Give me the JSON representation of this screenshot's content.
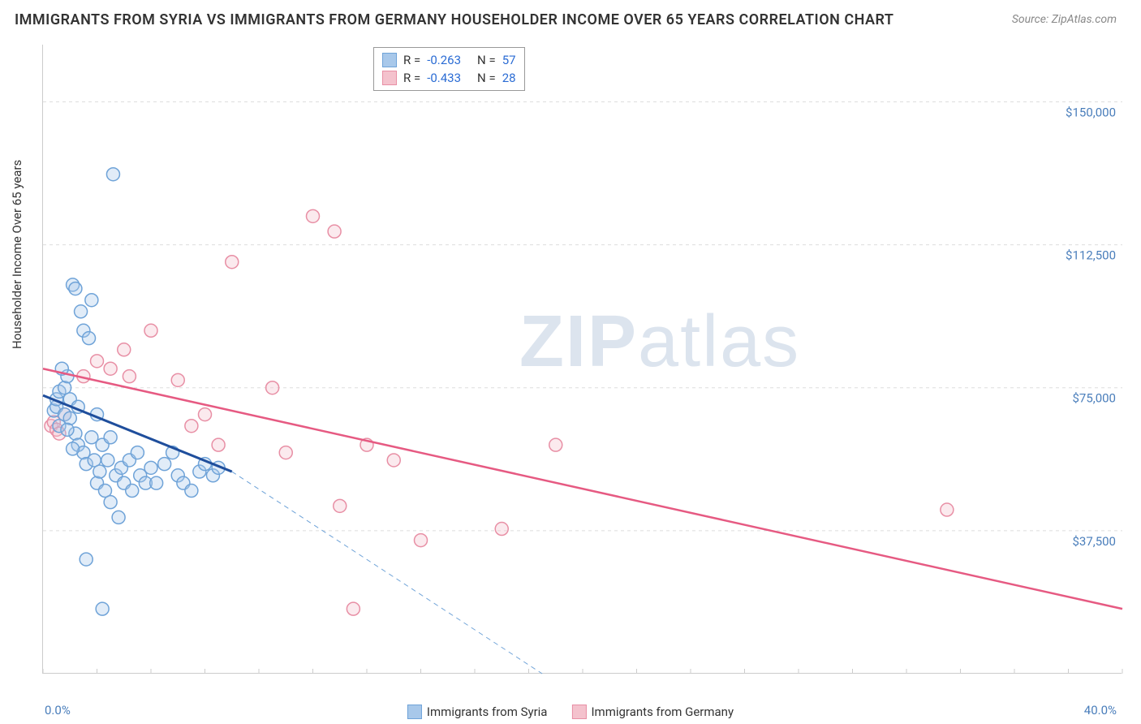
{
  "title": "IMMIGRANTS FROM SYRIA VS IMMIGRANTS FROM GERMANY HOUSEHOLDER INCOME OVER 65 YEARS CORRELATION CHART",
  "source": "Source: ZipAtlas.com",
  "ylabel": "Householder Income Over 65 years",
  "watermark_bold": "ZIP",
  "watermark_light": "atlas",
  "chart": {
    "type": "scatter",
    "xlim": [
      0.0,
      40.0
    ],
    "ylim": [
      0,
      165000
    ],
    "x_unit": "%",
    "y_unit": "$",
    "x_ticks": [
      {
        "v": 0.0,
        "label": "0.0%"
      },
      {
        "v": 40.0,
        "label": "40.0%"
      }
    ],
    "y_gridlines": [
      {
        "v": 37500,
        "label": "$37,500"
      },
      {
        "v": 75000,
        "label": "$75,000"
      },
      {
        "v": 112500,
        "label": "$112,500"
      },
      {
        "v": 150000,
        "label": "$150,000"
      }
    ],
    "marker_radius": 8,
    "marker_fill_opacity": 0.35,
    "marker_stroke_width": 1.5,
    "background_color": "#ffffff",
    "grid_color": "#dddddd",
    "axis_color": "#cccccc",
    "tick_label_color": "#4a7ebb"
  },
  "series": {
    "syria": {
      "label": "Immigrants from Syria",
      "color_fill": "#a8c8ea",
      "color_stroke": "#6fa3d8",
      "R": "-0.263",
      "N": "57",
      "trendline": {
        "x1": 0.0,
        "y1": 73000,
        "x2": 7.0,
        "y2": 53000,
        "color": "#1f4e9c",
        "width": 3,
        "dash": "none"
      },
      "trendline_ext": {
        "x1": 7.0,
        "y1": 53000,
        "x2": 18.5,
        "y2": 0,
        "color": "#6fa3d8",
        "width": 1,
        "dash": "6,5"
      },
      "points": [
        [
          0.4,
          69000
        ],
        [
          0.5,
          70000
        ],
        [
          0.5,
          72000
        ],
        [
          0.6,
          74000
        ],
        [
          0.6,
          65000
        ],
        [
          0.8,
          75000
        ],
        [
          0.8,
          68000
        ],
        [
          0.9,
          78000
        ],
        [
          1.0,
          72000
        ],
        [
          1.0,
          67000
        ],
        [
          1.1,
          102000
        ],
        [
          1.2,
          101000
        ],
        [
          1.2,
          63000
        ],
        [
          1.3,
          60000
        ],
        [
          1.3,
          70000
        ],
        [
          1.4,
          95000
        ],
        [
          1.5,
          90000
        ],
        [
          1.5,
          58000
        ],
        [
          1.6,
          55000
        ],
        [
          1.7,
          88000
        ],
        [
          1.8,
          98000
        ],
        [
          1.8,
          62000
        ],
        [
          1.9,
          56000
        ],
        [
          2.0,
          50000
        ],
        [
          2.0,
          68000
        ],
        [
          2.1,
          53000
        ],
        [
          2.2,
          60000
        ],
        [
          2.3,
          48000
        ],
        [
          2.4,
          56000
        ],
        [
          2.5,
          62000
        ],
        [
          2.5,
          45000
        ],
        [
          2.6,
          131000
        ],
        [
          2.7,
          52000
        ],
        [
          2.8,
          41000
        ],
        [
          2.9,
          54000
        ],
        [
          3.0,
          50000
        ],
        [
          3.2,
          56000
        ],
        [
          3.3,
          48000
        ],
        [
          3.5,
          58000
        ],
        [
          3.6,
          52000
        ],
        [
          3.8,
          50000
        ],
        [
          4.0,
          54000
        ],
        [
          4.2,
          50000
        ],
        [
          4.5,
          55000
        ],
        [
          4.8,
          58000
        ],
        [
          5.0,
          52000
        ],
        [
          5.2,
          50000
        ],
        [
          5.5,
          48000
        ],
        [
          5.8,
          53000
        ],
        [
          6.0,
          55000
        ],
        [
          6.3,
          52000
        ],
        [
          6.5,
          54000
        ],
        [
          2.2,
          17000
        ],
        [
          1.6,
          30000
        ],
        [
          0.7,
          80000
        ],
        [
          0.9,
          64000
        ],
        [
          1.1,
          59000
        ]
      ]
    },
    "germany": {
      "label": "Immigrants from Germany",
      "color_fill": "#f4c2cd",
      "color_stroke": "#e88fa5",
      "R": "-0.433",
      "N": "28",
      "trendline": {
        "x1": 0.0,
        "y1": 80000,
        "x2": 40.0,
        "y2": 17000,
        "color": "#e65a82",
        "width": 2.5,
        "dash": "none"
      },
      "points": [
        [
          0.3,
          65000
        ],
        [
          0.4,
          66000
        ],
        [
          0.5,
          64000
        ],
        [
          0.6,
          63000
        ],
        [
          0.8,
          68000
        ],
        [
          1.5,
          78000
        ],
        [
          2.0,
          82000
        ],
        [
          2.5,
          80000
        ],
        [
          3.0,
          85000
        ],
        [
          3.2,
          78000
        ],
        [
          4.0,
          90000
        ],
        [
          5.0,
          77000
        ],
        [
          5.5,
          65000
        ],
        [
          6.0,
          68000
        ],
        [
          6.5,
          60000
        ],
        [
          7.0,
          108000
        ],
        [
          8.5,
          75000
        ],
        [
          9.0,
          58000
        ],
        [
          10.0,
          120000
        ],
        [
          10.8,
          116000
        ],
        [
          11.0,
          44000
        ],
        [
          12.0,
          60000
        ],
        [
          13.0,
          56000
        ],
        [
          14.0,
          35000
        ],
        [
          17.0,
          38000
        ],
        [
          19.0,
          60000
        ],
        [
          33.5,
          43000
        ],
        [
          11.5,
          17000
        ]
      ]
    }
  },
  "stats_box": {
    "rows": [
      {
        "series_key": "syria",
        "R_prefix": "R =",
        "N_prefix": "N ="
      },
      {
        "series_key": "germany",
        "R_prefix": "R =",
        "N_prefix": "N ="
      }
    ]
  }
}
